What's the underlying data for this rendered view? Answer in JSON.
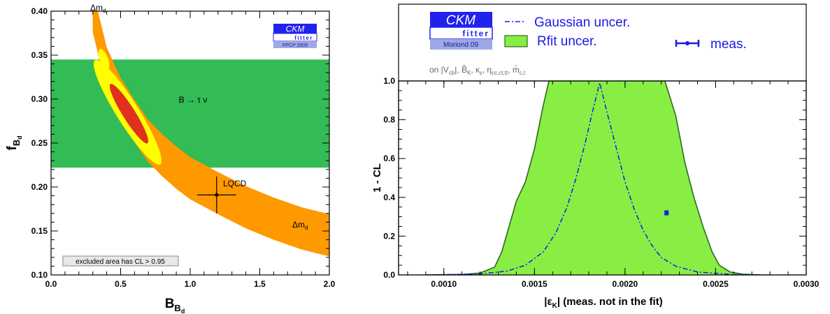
{
  "colors": {
    "orange": "#ff9900",
    "yellow": "#ffff00",
    "red_core": "#e0301e",
    "green_band": "#33bb55",
    "light_green": "#88ee44",
    "dark_green": "#2d6a1a",
    "blue": "#1a1ae6",
    "logo_blue": "#2222ee"
  },
  "chart_data": [
    {
      "type": "area",
      "xlabel": "B",
      "xlabel_sub": "B",
      "xlabel_subsub": "d",
      "ylabel": "f",
      "ylabel_sub": "B",
      "ylabel_subsub": "d",
      "xlim": [
        0.0,
        2.0
      ],
      "ylim": [
        0.1,
        0.4
      ],
      "x_ticks": [
        "0.0",
        "0.5",
        "1.0",
        "1.5",
        "2.0"
      ],
      "y_ticks": [
        "0.10",
        "0.15",
        "0.20",
        "0.25",
        "0.30",
        "0.35",
        "0.40"
      ],
      "grid": false,
      "logo": {
        "main": "CKM",
        "sub": "fitter",
        "tag": "FPCP 2009"
      },
      "band_btaunu": {
        "label": "B → τ ν",
        "y": [
          0.222,
          0.345
        ]
      },
      "constraint_label": "Δm",
      "constraint_label_sub": "d",
      "curve_center": [
        [
          0.3,
          0.4
        ],
        [
          0.4,
          0.335
        ],
        [
          0.5,
          0.3
        ],
        [
          0.6,
          0.275
        ],
        [
          0.7,
          0.252
        ],
        [
          0.8,
          0.236
        ],
        [
          0.9,
          0.222
        ],
        [
          1.0,
          0.21
        ],
        [
          1.2,
          0.193
        ],
        [
          1.4,
          0.177
        ],
        [
          1.6,
          0.164
        ],
        [
          1.8,
          0.153
        ],
        [
          2.0,
          0.145
        ]
      ],
      "band_width_95": 0.024,
      "band_width_68": 0.012,
      "core_ellipse": {
        "center": [
          0.55,
          0.285
        ],
        "label": ""
      },
      "lqcd": {
        "label": "LQCD",
        "x": 1.19,
        "y": 0.191,
        "x_err": 0.14,
        "y_err": 0.021
      },
      "note": "excluded area has CL > 0.95"
    },
    {
      "type": "area",
      "xlabel": "|ε",
      "xlabel_sub": "K",
      "xlabel_tail": "| (meas. not in the fit)",
      "ylabel": "1 - CL",
      "xlim": [
        0.00075,
        0.003
      ],
      "ylim": [
        0.0,
        1.0
      ],
      "x_ticks": [
        "0.0010",
        "0.0015",
        "0.0020",
        "0.0025",
        "0.0030"
      ],
      "y_ticks": [
        "0.0",
        "0.2",
        "0.4",
        "0.6",
        "0.8",
        "1.0"
      ],
      "grid": false,
      "logo": {
        "main": "CKM",
        "sub": "fitter",
        "tag": "Moriond 09"
      },
      "legend": {
        "gaussian": "Gaussian uncer.",
        "rfit": "Rfit uncer.",
        "meas": "meas."
      },
      "condition": "on |V_cb|, B_K, κ_ε, η_cc,ct,tt, m_c,t",
      "condition_parts": [
        "on |V",
        "cb",
        "|, ",
        "B̂",
        "K",
        ", κ",
        "ε",
        ", η",
        "cc,ct,tt",
        ", ",
        "m̄",
        "c,t"
      ],
      "rfit_curve": [
        [
          0.0009,
          0.0
        ],
        [
          0.0011,
          0.002
        ],
        [
          0.0012,
          0.01
        ],
        [
          0.00128,
          0.04
        ],
        [
          0.00132,
          0.12
        ],
        [
          0.00136,
          0.25
        ],
        [
          0.0014,
          0.38
        ],
        [
          0.00145,
          0.48
        ],
        [
          0.0015,
          0.65
        ],
        [
          0.00155,
          0.88
        ],
        [
          0.00158,
          1.0
        ],
        [
          0.00222,
          1.0
        ],
        [
          0.00228,
          0.82
        ],
        [
          0.00233,
          0.58
        ],
        [
          0.00238,
          0.4
        ],
        [
          0.00243,
          0.25
        ],
        [
          0.00248,
          0.12
        ],
        [
          0.00252,
          0.05
        ],
        [
          0.00258,
          0.015
        ],
        [
          0.00265,
          0.004
        ],
        [
          0.00275,
          0.0
        ]
      ],
      "gaussian_curve": [
        [
          0.0009,
          0.0
        ],
        [
          0.0012,
          0.005
        ],
        [
          0.00135,
          0.02
        ],
        [
          0.00145,
          0.05
        ],
        [
          0.00155,
          0.12
        ],
        [
          0.00162,
          0.22
        ],
        [
          0.00168,
          0.35
        ],
        [
          0.00173,
          0.5
        ],
        [
          0.00178,
          0.68
        ],
        [
          0.00182,
          0.84
        ],
        [
          0.00186,
          0.99
        ],
        [
          0.0019,
          0.84
        ],
        [
          0.00195,
          0.66
        ],
        [
          0.002,
          0.48
        ],
        [
          0.00205,
          0.34
        ],
        [
          0.0021,
          0.23
        ],
        [
          0.00215,
          0.15
        ],
        [
          0.0022,
          0.09
        ],
        [
          0.00228,
          0.045
        ],
        [
          0.0024,
          0.015
        ],
        [
          0.0026,
          0.002
        ],
        [
          0.0028,
          0.0
        ]
      ],
      "measurement": {
        "x": 0.002229,
        "y": 0.32,
        "x_err": 1e-05
      }
    }
  ]
}
